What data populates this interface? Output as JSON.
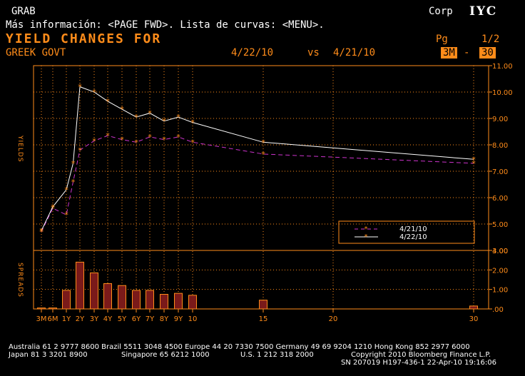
{
  "header": {
    "app_name": "GRAB",
    "market": "Corp",
    "function_code": "IYC",
    "hint": "Más información: <PAGE FWD>. Lista de curvas: <MENU>.",
    "title": "YIELD CHANGES FOR",
    "page_label": "Pg",
    "page": "1/2",
    "curve": "GREEK GOVT",
    "date1": "4/22/10",
    "vs": "vs",
    "date2": "4/21/10",
    "range_from": "3M",
    "range_sep": "-",
    "range_to": "30"
  },
  "colors": {
    "orange": "#ff8c1a",
    "grid": "#ff8c1a",
    "series_new": "#ffffff",
    "series_old": "#cc33cc",
    "bar_fill": "#7a1a1a"
  },
  "chart_data": {
    "type": "line",
    "x_labels": [
      "3M",
      "6M",
      "1Y",
      "2Y",
      "3Y",
      "4Y",
      "5Y",
      "6Y",
      "7Y",
      "8Y",
      "9Y",
      "10",
      "15",
      "20",
      "30"
    ],
    "x_tick_positions": [
      0.25,
      0.5,
      1,
      2,
      3,
      4,
      5,
      6,
      7,
      8,
      9,
      10,
      15,
      20,
      30
    ],
    "ylabel": "YIELDS",
    "ylim": [
      4.0,
      11.0
    ],
    "yticks": [
      "11.00",
      "10.00",
      "9.00",
      "8.00",
      "7.00",
      "6.00",
      "5.00",
      "4.00"
    ],
    "series": [
      {
        "name": "4/21/10",
        "style": "dashed",
        "x": [
          0.25,
          0.5,
          1,
          1.5,
          2,
          3,
          4,
          5,
          6,
          7,
          8,
          9,
          10,
          15,
          30
        ],
        "values": [
          4.7,
          5.6,
          5.35,
          6.6,
          7.8,
          8.15,
          8.35,
          8.2,
          8.1,
          8.3,
          8.2,
          8.3,
          8.1,
          7.65,
          7.3
        ]
      },
      {
        "name": "4/22/10",
        "style": "solid",
        "x": [
          0.25,
          0.5,
          1,
          1.5,
          2,
          3,
          4,
          5,
          6,
          7,
          8,
          9,
          10,
          15,
          30
        ],
        "values": [
          4.75,
          5.65,
          6.3,
          7.3,
          10.2,
          10.0,
          9.65,
          9.35,
          9.05,
          9.2,
          8.9,
          9.05,
          8.85,
          8.1,
          7.45
        ]
      }
    ],
    "spreads": {
      "ylabel": "SPREADS",
      "ylim": [
        0,
        3.0
      ],
      "yticks": [
        "3.00",
        "2.00",
        "1.00",
        ".00"
      ],
      "x": [
        0.25,
        0.5,
        1,
        2,
        3,
        4,
        5,
        6,
        7,
        8,
        9,
        10,
        15,
        30
      ],
      "values": [
        0.05,
        0.05,
        0.95,
        2.4,
        1.85,
        1.3,
        1.2,
        0.95,
        0.95,
        0.75,
        0.8,
        0.7,
        0.45,
        0.15
      ]
    },
    "legend": [
      {
        "label": "4/21/10",
        "style": "dashed"
      },
      {
        "label": "4/22/10",
        "style": "solid"
      }
    ],
    "legend_position": "lower-right"
  },
  "footer": {
    "line1": "Australia 61 2 9777 8600 Brazil 5511 3048 4500 Europe 44 20 7330 7500 Germany 49 69 9204 1210 Hong Kong 852 2977 6000",
    "line2_left": "Japan 81 3 3201 8900",
    "line2_mid": "Singapore 65 6212 1000",
    "line2_mid2": "U.S. 1 212 318 2000",
    "line2_right": "Copyright 2010 Bloomberg Finance L.P.",
    "line3": "SN 207019 H197-436-1 22-Apr-10 19:16:06"
  }
}
